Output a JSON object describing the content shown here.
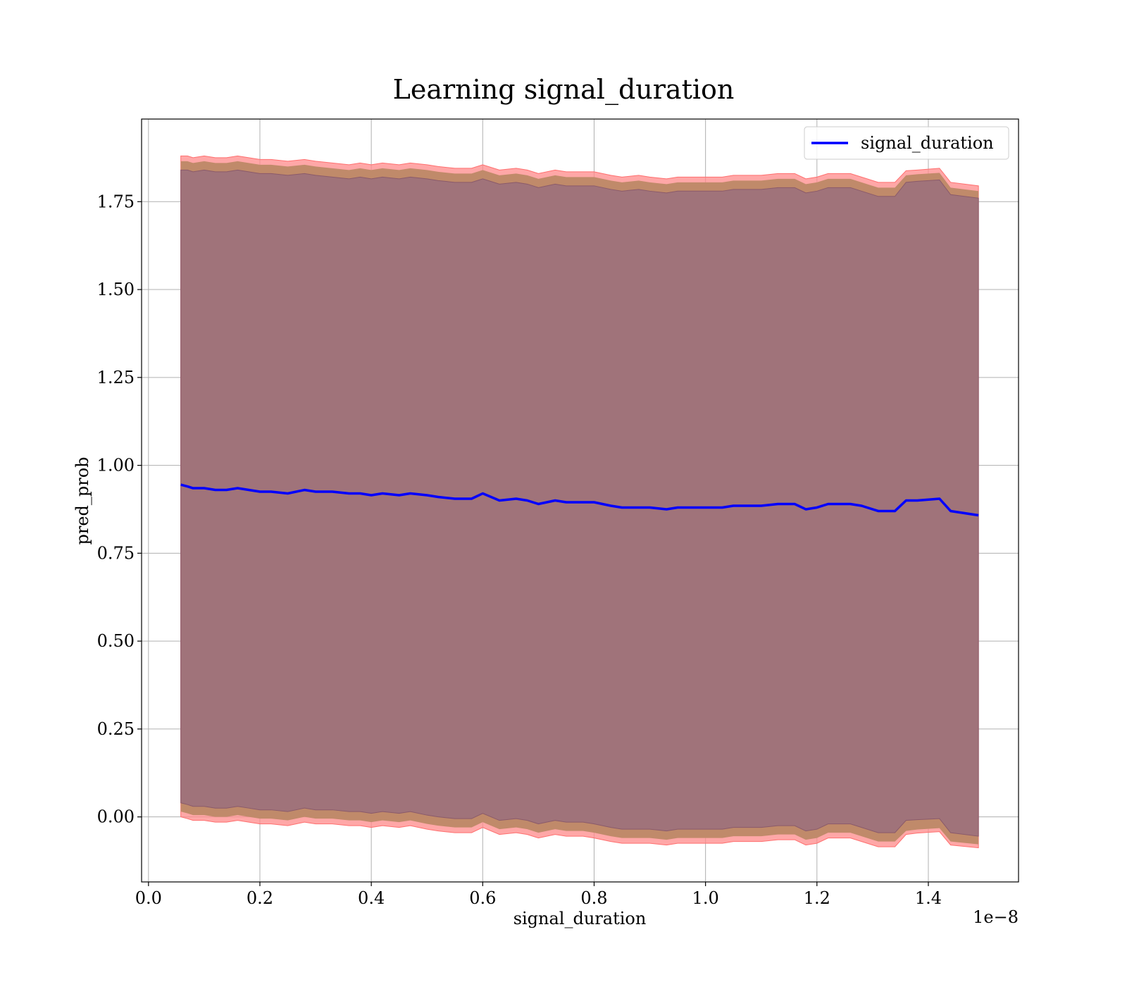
{
  "chart_data": {
    "type": "line",
    "title": "Learning signal_duration",
    "xlabel": "signal_duration",
    "ylabel": "pred_prob",
    "x_offset_label": "1e−8",
    "xlim": [
      -0.0124,
      1.5619
    ],
    "ylim": [
      -0.185,
      1.985
    ],
    "x_ticks": [
      0.0,
      0.2,
      0.4,
      0.6,
      0.8,
      1.0,
      1.2,
      1.4
    ],
    "x_tick_labels": [
      "0.0",
      "0.2",
      "0.4",
      "0.6",
      "0.8",
      "1.0",
      "1.2",
      "1.4"
    ],
    "y_ticks": [
      0.0,
      0.25,
      0.5,
      0.75,
      1.0,
      1.25,
      1.5,
      1.75
    ],
    "y_tick_labels": [
      "0.00",
      "0.25",
      "0.50",
      "0.75",
      "1.00",
      "1.25",
      "1.50",
      "1.75"
    ],
    "grid": true,
    "legend": {
      "position": "top-right",
      "entries": [
        "signal_duration"
      ]
    },
    "colors": {
      "line": "#0000ff",
      "band_outer": "#ff8a8a",
      "band_mid": "#c08a6a",
      "band_inner": "#a0737a"
    },
    "series": [
      {
        "name": "signal_duration",
        "x": [
          0.058,
          0.07,
          0.08,
          0.1,
          0.12,
          0.14,
          0.16,
          0.18,
          0.2,
          0.22,
          0.25,
          0.28,
          0.3,
          0.33,
          0.36,
          0.38,
          0.4,
          0.42,
          0.45,
          0.47,
          0.5,
          0.52,
          0.55,
          0.58,
          0.6,
          0.63,
          0.66,
          0.68,
          0.7,
          0.73,
          0.75,
          0.78,
          0.8,
          0.83,
          0.85,
          0.88,
          0.9,
          0.93,
          0.95,
          0.98,
          1.0,
          1.03,
          1.05,
          1.08,
          1.1,
          1.13,
          1.16,
          1.18,
          1.2,
          1.22,
          1.24,
          1.26,
          1.28,
          1.31,
          1.34,
          1.36,
          1.38,
          1.42,
          1.44,
          1.49
        ],
        "y": [
          0.945,
          0.94,
          0.935,
          0.935,
          0.93,
          0.93,
          0.935,
          0.93,
          0.925,
          0.925,
          0.92,
          0.93,
          0.925,
          0.925,
          0.92,
          0.92,
          0.915,
          0.92,
          0.915,
          0.92,
          0.915,
          0.91,
          0.905,
          0.905,
          0.92,
          0.9,
          0.905,
          0.9,
          0.89,
          0.9,
          0.895,
          0.895,
          0.895,
          0.885,
          0.88,
          0.88,
          0.88,
          0.875,
          0.88,
          0.88,
          0.88,
          0.88,
          0.885,
          0.885,
          0.885,
          0.89,
          0.89,
          0.875,
          0.88,
          0.89,
          0.89,
          0.89,
          0.885,
          0.87,
          0.87,
          0.9,
          0.9,
          0.905,
          0.87,
          0.858
        ],
        "upper_outer": [
          1.88,
          1.88,
          1.875,
          1.88,
          1.875,
          1.875,
          1.88,
          1.875,
          1.87,
          1.87,
          1.865,
          1.87,
          1.865,
          1.86,
          1.855,
          1.86,
          1.855,
          1.86,
          1.855,
          1.86,
          1.855,
          1.85,
          1.845,
          1.845,
          1.855,
          1.84,
          1.845,
          1.84,
          1.83,
          1.84,
          1.835,
          1.835,
          1.835,
          1.825,
          1.82,
          1.825,
          1.82,
          1.815,
          1.82,
          1.82,
          1.82,
          1.82,
          1.825,
          1.825,
          1.825,
          1.83,
          1.83,
          1.815,
          1.82,
          1.83,
          1.83,
          1.83,
          1.82,
          1.805,
          1.805,
          1.838,
          1.84,
          1.845,
          1.805,
          1.795
        ],
        "upper_mid": [
          1.865,
          1.865,
          1.86,
          1.865,
          1.86,
          1.86,
          1.865,
          1.86,
          1.855,
          1.855,
          1.85,
          1.855,
          1.85,
          1.845,
          1.84,
          1.845,
          1.84,
          1.845,
          1.84,
          1.845,
          1.84,
          1.835,
          1.83,
          1.83,
          1.84,
          1.825,
          1.83,
          1.825,
          1.815,
          1.825,
          1.82,
          1.82,
          1.82,
          1.81,
          1.805,
          1.81,
          1.805,
          1.8,
          1.805,
          1.805,
          1.805,
          1.805,
          1.81,
          1.81,
          1.81,
          1.815,
          1.815,
          1.8,
          1.805,
          1.815,
          1.815,
          1.815,
          1.805,
          1.79,
          1.79,
          1.825,
          1.828,
          1.832,
          1.79,
          1.78
        ],
        "upper_inner": [
          1.84,
          1.84,
          1.835,
          1.84,
          1.835,
          1.835,
          1.84,
          1.835,
          1.83,
          1.83,
          1.825,
          1.83,
          1.825,
          1.82,
          1.815,
          1.82,
          1.815,
          1.82,
          1.815,
          1.82,
          1.815,
          1.81,
          1.805,
          1.805,
          1.815,
          1.8,
          1.805,
          1.8,
          1.79,
          1.8,
          1.795,
          1.795,
          1.795,
          1.785,
          1.78,
          1.785,
          1.78,
          1.775,
          1.78,
          1.78,
          1.78,
          1.78,
          1.785,
          1.785,
          1.785,
          1.79,
          1.79,
          1.775,
          1.78,
          1.79,
          1.79,
          1.79,
          1.78,
          1.765,
          1.765,
          1.805,
          1.808,
          1.812,
          1.77,
          1.76
        ],
        "lower_inner": [
          0.04,
          0.035,
          0.03,
          0.03,
          0.025,
          0.025,
          0.03,
          0.025,
          0.02,
          0.02,
          0.015,
          0.025,
          0.02,
          0.02,
          0.015,
          0.015,
          0.01,
          0.015,
          0.01,
          0.015,
          0.005,
          0.0,
          -0.005,
          -0.005,
          0.01,
          -0.01,
          -0.005,
          -0.01,
          -0.02,
          -0.01,
          -0.015,
          -0.015,
          -0.02,
          -0.03,
          -0.035,
          -0.035,
          -0.035,
          -0.04,
          -0.035,
          -0.035,
          -0.035,
          -0.035,
          -0.03,
          -0.03,
          -0.03,
          -0.025,
          -0.025,
          -0.04,
          -0.035,
          -0.02,
          -0.02,
          -0.02,
          -0.03,
          -0.045,
          -0.045,
          -0.01,
          -0.008,
          -0.005,
          -0.045,
          -0.055
        ],
        "lower_mid": [
          0.015,
          0.01,
          0.005,
          0.005,
          0.0,
          0.0,
          0.005,
          0.0,
          -0.005,
          -0.005,
          -0.01,
          0.0,
          -0.005,
          -0.005,
          -0.01,
          -0.01,
          -0.015,
          -0.01,
          -0.015,
          -0.01,
          -0.02,
          -0.025,
          -0.03,
          -0.03,
          -0.015,
          -0.035,
          -0.03,
          -0.035,
          -0.045,
          -0.035,
          -0.04,
          -0.04,
          -0.045,
          -0.055,
          -0.06,
          -0.06,
          -0.06,
          -0.065,
          -0.06,
          -0.06,
          -0.06,
          -0.06,
          -0.055,
          -0.055,
          -0.055,
          -0.05,
          -0.05,
          -0.065,
          -0.06,
          -0.045,
          -0.045,
          -0.045,
          -0.055,
          -0.07,
          -0.07,
          -0.04,
          -0.036,
          -0.032,
          -0.07,
          -0.078
        ],
        "lower_outer": [
          0.0,
          -0.005,
          -0.01,
          -0.01,
          -0.015,
          -0.015,
          -0.01,
          -0.015,
          -0.02,
          -0.02,
          -0.025,
          -0.015,
          -0.02,
          -0.02,
          -0.025,
          -0.025,
          -0.03,
          -0.025,
          -0.03,
          -0.025,
          -0.035,
          -0.04,
          -0.045,
          -0.045,
          -0.03,
          -0.05,
          -0.045,
          -0.05,
          -0.06,
          -0.05,
          -0.055,
          -0.055,
          -0.06,
          -0.07,
          -0.075,
          -0.075,
          -0.075,
          -0.08,
          -0.075,
          -0.075,
          -0.075,
          -0.075,
          -0.07,
          -0.07,
          -0.07,
          -0.065,
          -0.065,
          -0.08,
          -0.075,
          -0.06,
          -0.06,
          -0.06,
          -0.07,
          -0.085,
          -0.085,
          -0.05,
          -0.046,
          -0.042,
          -0.08,
          -0.088
        ]
      }
    ]
  }
}
